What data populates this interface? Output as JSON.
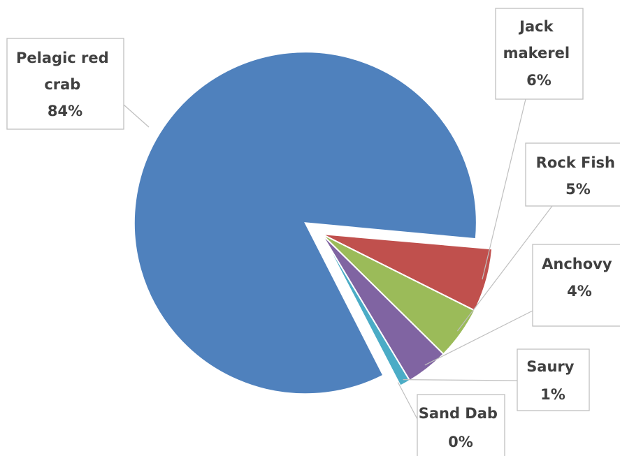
{
  "chart_data": {
    "type": "pie",
    "slices": [
      {
        "name": "Pelagic red crab",
        "value": 84,
        "label_lines": [
          "Pelagic red",
          "crab",
          "84%"
        ],
        "color": "#4f81bd"
      },
      {
        "name": "Jack makerel",
        "value": 6,
        "label_lines": [
          "Jack",
          "makerel",
          "6%"
        ],
        "color": "#c0504d"
      },
      {
        "name": "Rock Fish",
        "value": 5,
        "label_lines": [
          "Rock Fish",
          "5%"
        ],
        "color": "#9bbb59"
      },
      {
        "name": "Anchovy",
        "value": 4,
        "label_lines": [
          "Anchovy",
          "4%"
        ],
        "color": "#8064a2"
      },
      {
        "name": "Saury",
        "value": 1,
        "label_lines": [
          "Saury",
          "1%"
        ],
        "color": "#4bacc6"
      },
      {
        "name": "Sand Dab",
        "value": 0,
        "label_lines": [
          "Sand Dab",
          "0%"
        ],
        "color": "#f79646"
      }
    ],
    "exploded_slice": "Pelagic red crab",
    "legend": "none"
  }
}
